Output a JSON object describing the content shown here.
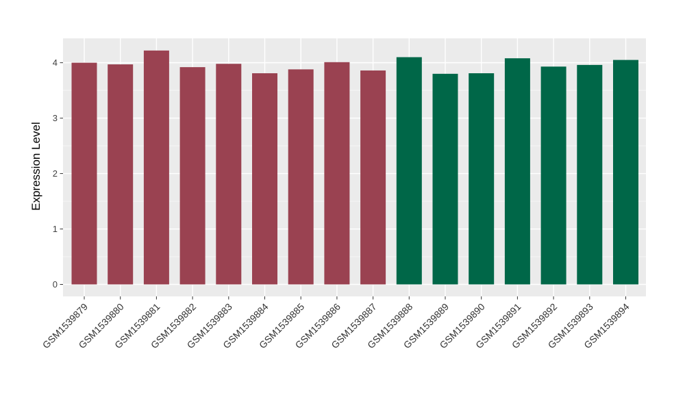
{
  "figure": {
    "background": "#ffffff",
    "panel_background": "#ebebeb",
    "grid_major_color": "#ffffff",
    "grid_minor_color": "#ffffff",
    "tick_color": "#333333"
  },
  "chart_data": {
    "type": "bar",
    "title": "",
    "xlabel": "",
    "ylabel": "Expression Level",
    "categories": [
      "GSM1539879",
      "GSM1539880",
      "GSM1539881",
      "GSM1539882",
      "GSM1539883",
      "GSM1539884",
      "GSM1539885",
      "GSM1539886",
      "GSM1539887",
      "GSM1539888",
      "GSM1539889",
      "GSM1539890",
      "GSM1539891",
      "GSM1539892",
      "GSM1539893",
      "GSM1539894"
    ],
    "values": [
      4.0,
      3.97,
      4.22,
      3.92,
      3.98,
      3.81,
      3.88,
      4.01,
      3.86,
      4.1,
      3.8,
      3.81,
      4.08,
      3.93,
      3.96,
      4.05
    ],
    "groups": [
      1,
      1,
      1,
      1,
      1,
      1,
      1,
      1,
      1,
      2,
      2,
      2,
      2,
      2,
      2,
      2
    ],
    "group_colors": [
      "#9a4251",
      "#006748"
    ],
    "ylim": [
      0,
      4.44
    ],
    "yticks": [
      0,
      1,
      2,
      3,
      4
    ],
    "yticks_minor": [
      0.5,
      1.5,
      2.5,
      3.5
    ],
    "grid": true,
    "legend_position": "none",
    "x_label_angle": 45
  }
}
